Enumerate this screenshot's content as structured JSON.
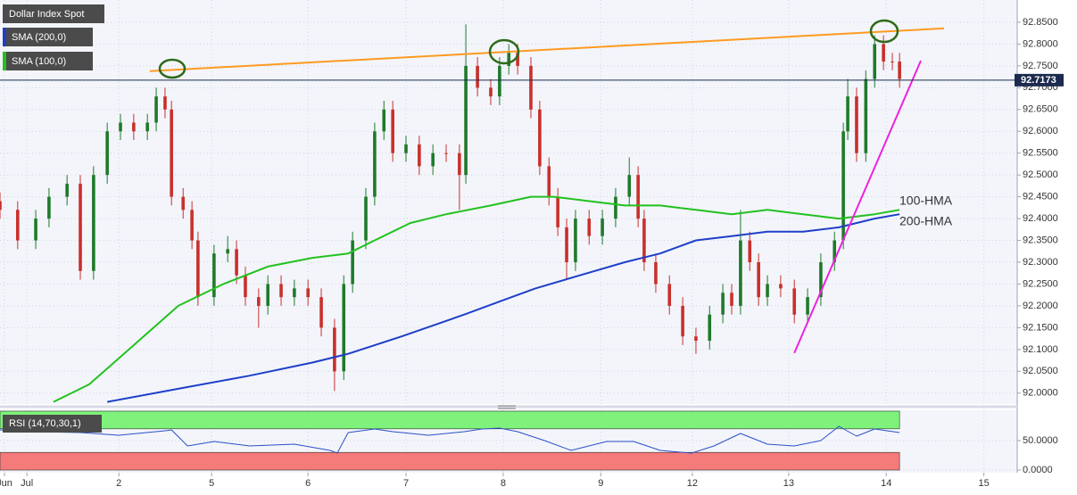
{
  "chart_data": [
    {
      "type": "candlestick",
      "title": "Dollar Index Spot",
      "x": [
        0,
        4.4,
        8.9,
        12.2,
        16.7,
        20,
        23.3,
        26.7,
        30,
        33.3,
        36.7,
        38.9,
        41.1,
        42.7,
        45.6,
        47.8,
        49.3,
        53.3,
        56.7,
        58.9,
        61.1,
        64.4,
        66.7,
        70,
        73.3,
        76.7,
        80,
        83.3,
        85.6,
        87.8,
        91.1,
        93.3,
        95.6,
        97.8,
        101.1,
        104.4,
        107.8,
        111.1,
        114.4,
        116,
        118.9,
        122.2,
        124.4,
        126.7,
        128.9,
        132.2,
        134.4,
        136.7,
        138.9,
        141.1,
        143.3,
        146.7,
        150,
        153.3,
        156.7,
        158.9,
        160.4,
        163.3,
        166.7,
        170,
        173.3,
        176.7,
        180,
        182.2,
        184.4,
        186.7,
        188.9,
        191.1,
        194.4,
        197.8,
        201.1,
        204.4,
        207.8,
        210,
        211.1,
        213.3,
        215.6,
        217.8,
        220,
        222.2,
        224
      ],
      "open": [
        92.44,
        92.42,
        92.35,
        92.4,
        92.45,
        92.48,
        92.28,
        92.5,
        92.6,
        92.62,
        92.6,
        92.62,
        92.68,
        92.65,
        92.45,
        92.42,
        92.35,
        92.22,
        92.32,
        92.33,
        92.27,
        92.22,
        92.2,
        92.25,
        92.22,
        92.24,
        92.22,
        92.15,
        92.05,
        92.25,
        92.35,
        92.45,
        92.6,
        92.65,
        92.55,
        92.57,
        92.52,
        92.55,
        92.55,
        92.5,
        92.75,
        92.7,
        92.68,
        92.75,
        92.78,
        92.75,
        92.65,
        92.52,
        92.45,
        92.38,
        92.3,
        92.4,
        92.36,
        92.4,
        92.45,
        92.5,
        92.4,
        92.3,
        92.25,
        92.2,
        92.13,
        92.12,
        92.18,
        92.23,
        92.2,
        92.35,
        92.3,
        92.22,
        92.25,
        92.24,
        92.18,
        92.22,
        92.3,
        92.35,
        92.6,
        92.68,
        92.55,
        92.72,
        92.8,
        92.76,
        92.76
      ],
      "high": [
        92.46,
        92.44,
        92.42,
        92.47,
        92.5,
        92.5,
        92.52,
        92.62,
        92.64,
        92.64,
        92.64,
        92.7,
        92.7,
        92.67,
        92.47,
        92.44,
        92.37,
        92.34,
        92.36,
        92.35,
        92.29,
        92.24,
        92.27,
        92.27,
        92.26,
        92.26,
        92.24,
        92.17,
        92.27,
        92.37,
        92.47,
        92.62,
        92.67,
        92.67,
        92.59,
        92.59,
        92.57,
        92.57,
        92.57,
        92.845,
        92.77,
        92.72,
        92.77,
        92.8,
        92.8,
        92.77,
        92.67,
        92.54,
        92.47,
        92.4,
        92.42,
        92.42,
        92.42,
        92.47,
        92.54,
        92.52,
        92.42,
        92.32,
        92.27,
        92.22,
        92.15,
        92.2,
        92.25,
        92.25,
        92.42,
        92.37,
        92.32,
        92.27,
        92.27,
        92.26,
        92.24,
        92.32,
        92.37,
        92.62,
        92.72,
        92.7,
        92.74,
        92.82,
        92.82,
        92.78,
        92.78
      ],
      "low": [
        92.4,
        92.33,
        92.33,
        92.38,
        92.43,
        92.26,
        92.26,
        92.48,
        92.58,
        92.58,
        92.58,
        92.6,
        92.63,
        92.43,
        92.4,
        92.33,
        92.2,
        92.2,
        92.3,
        92.25,
        92.2,
        92.15,
        92.18,
        92.2,
        92.2,
        92.2,
        92.13,
        92.005,
        92.03,
        92.23,
        92.33,
        92.43,
        92.58,
        92.53,
        92.53,
        92.5,
        92.5,
        92.53,
        92.42,
        92.48,
        92.68,
        92.66,
        92.66,
        92.73,
        92.73,
        92.63,
        92.5,
        92.43,
        92.36,
        92.26,
        92.28,
        92.34,
        92.34,
        92.38,
        92.43,
        92.38,
        92.28,
        92.23,
        92.18,
        92.11,
        92.09,
        92.1,
        92.16,
        92.18,
        92.18,
        92.28,
        92.2,
        92.2,
        92.22,
        92.16,
        92.16,
        92.2,
        92.28,
        92.33,
        92.58,
        92.53,
        92.53,
        92.7,
        92.74,
        92.74,
        92.7
      ],
      "close": [
        92.42,
        92.35,
        92.4,
        92.45,
        92.48,
        92.28,
        92.5,
        92.6,
        92.62,
        92.6,
        92.62,
        92.68,
        92.65,
        92.45,
        92.42,
        92.35,
        92.22,
        92.32,
        92.33,
        92.27,
        92.22,
        92.2,
        92.25,
        92.22,
        92.24,
        92.22,
        92.15,
        92.05,
        92.25,
        92.35,
        92.45,
        92.6,
        92.65,
        92.55,
        92.57,
        92.52,
        92.55,
        92.55,
        92.5,
        92.75,
        92.7,
        92.68,
        92.75,
        92.78,
        92.75,
        92.65,
        92.52,
        92.45,
        92.38,
        92.3,
        92.4,
        92.36,
        92.4,
        92.45,
        92.5,
        92.4,
        92.3,
        92.25,
        92.2,
        92.13,
        92.12,
        92.18,
        92.23,
        92.2,
        92.35,
        92.3,
        92.22,
        92.25,
        92.24,
        92.18,
        92.22,
        92.3,
        92.35,
        92.6,
        92.68,
        92.55,
        92.72,
        92.8,
        92.76,
        92.76,
        92.72
      ],
      "colors": {
        "up": "#1f7a2a",
        "down": "#c9302c"
      },
      "series": [
        {
          "name": "SMA (200,0)",
          "color": "#1f3fc8",
          "x": [
            26.7,
            44.4,
            62.2,
            77.8,
            86.7,
            100,
            115.6,
            124.4,
            133.3,
            144.4,
            155.6,
            164.4,
            173.3,
            182.2,
            191.1,
            200,
            208.9,
            217.8,
            224
          ],
          "values": [
            91.98,
            92.01,
            92.04,
            92.07,
            92.09,
            92.13,
            92.18,
            92.21,
            92.24,
            92.27,
            92.3,
            92.32,
            92.35,
            92.36,
            92.37,
            92.37,
            92.38,
            92.4,
            92.41
          ]
        },
        {
          "name": "SMA (100,0)",
          "color": "#22c11e",
          "x": [
            13.3,
            22.2,
            33.3,
            44.4,
            55.6,
            66.7,
            77.8,
            86.7,
            93.3,
            102.2,
            111.1,
            122.2,
            132.2,
            137.8,
            146.7,
            155.6,
            164.4,
            173.3,
            182.2,
            191.1,
            200,
            208.9,
            217.8,
            224
          ],
          "values": [
            91.98,
            92.02,
            92.11,
            92.2,
            92.25,
            92.29,
            92.31,
            92.32,
            92.35,
            92.39,
            92.41,
            92.43,
            92.45,
            92.45,
            92.44,
            92.43,
            92.43,
            92.42,
            92.41,
            92.42,
            92.41,
            92.4,
            92.41,
            92.42
          ]
        }
      ],
      "annotations": [
        {
          "text": "100-HMA",
          "color": "#22b01e"
        },
        {
          "text": "200-HMA",
          "color": "#6f6fd6"
        }
      ],
      "trendlines": [
        {
          "color": "#ff9a1f",
          "x": [
            37.3,
            235.1
          ],
          "values": [
            92.738,
            92.836
          ]
        },
        {
          "color": "#ee22dd",
          "x": [
            197.8,
            229.3
          ],
          "values": [
            92.092,
            92.762
          ]
        }
      ],
      "last_price": 92.7173,
      "xlim": [
        0,
        253.3
      ],
      "xticks": [
        {
          "value": 1.1,
          "label": "Jun"
        },
        {
          "value": 6.7,
          "label": "Jul"
        },
        {
          "value": 29.6,
          "label": "2"
        },
        {
          "value": 52.7,
          "label": "5"
        },
        {
          "value": 76.7,
          "label": "6"
        },
        {
          "value": 101.1,
          "label": "7"
        },
        {
          "value": 125.3,
          "label": "8"
        },
        {
          "value": 149.6,
          "label": "9"
        },
        {
          "value": 172.4,
          "label": "12"
        },
        {
          "value": 196.4,
          "label": "13"
        },
        {
          "value": 220.7,
          "label": "14"
        },
        {
          "value": 245,
          "label": "15"
        }
      ],
      "ylim": [
        91.975,
        92.901
      ],
      "yticks": [
        {
          "value": 92,
          "label": "92.0000"
        },
        {
          "value": 92.05,
          "label": "92.0500"
        },
        {
          "value": 92.1,
          "label": "92.1000"
        },
        {
          "value": 92.15,
          "label": "92.1500"
        },
        {
          "value": 92.2,
          "label": "92.2000"
        },
        {
          "value": 92.25,
          "label": "92.2500"
        },
        {
          "value": 92.3,
          "label": "92.3000"
        },
        {
          "value": 92.35,
          "label": "92.3500"
        },
        {
          "value": 92.4,
          "label": "92.4000"
        },
        {
          "value": 92.45,
          "label": "92.4500"
        },
        {
          "value": 92.5,
          "label": "92.5000"
        },
        {
          "value": 92.55,
          "label": "92.5500"
        },
        {
          "value": 92.6,
          "label": "92.6000"
        },
        {
          "value": 92.65,
          "label": "92.6500"
        },
        {
          "value": 92.7,
          "label": "92.7000"
        },
        {
          "value": 92.75,
          "label": "92.7500"
        },
        {
          "value": 92.8,
          "label": "92.8000"
        },
        {
          "value": 92.85,
          "label": "92.8500"
        }
      ],
      "grid": true
    },
    {
      "type": "line",
      "title": "RSI (14,70,30,1)",
      "color": "#2b50c8",
      "x": [
        0,
        8.9,
        20,
        29.6,
        41.1,
        42.7,
        46.7,
        53.3,
        62.2,
        73.3,
        82.2,
        84,
        86.7,
        93.3,
        97.8,
        106.7,
        115.6,
        120,
        124.4,
        128.9,
        135.6,
        142.2,
        151.1,
        157.8,
        164.4,
        172.2,
        177.8,
        184.4,
        191.1,
        197.8,
        204.4,
        208.9,
        213.3,
        217.8,
        224
      ],
      "values": [
        68.2,
        65.2,
        63.6,
        59.1,
        66.7,
        68.2,
        40.9,
        48.5,
        40.9,
        43.9,
        33.3,
        28.8,
        63.6,
        69.7,
        65.2,
        59.1,
        65.2,
        69.7,
        71.2,
        65.2,
        50,
        33.3,
        48.5,
        48.5,
        33.3,
        28.8,
        40.9,
        62.1,
        43.9,
        40.9,
        50,
        74.2,
        57.6,
        69.7,
        63.6
      ],
      "bands": [
        {
          "from": 70,
          "to": 100,
          "color": "#7ef27a"
        },
        {
          "from": 0,
          "to": 30,
          "color": "#f57a7a"
        }
      ],
      "ylim": [
        -4.5,
        101.5
      ],
      "yticks": [
        {
          "value": 50,
          "label": "50.0000"
        },
        {
          "value": 0,
          "label": "0.0000"
        }
      ],
      "grid": true
    }
  ]
}
